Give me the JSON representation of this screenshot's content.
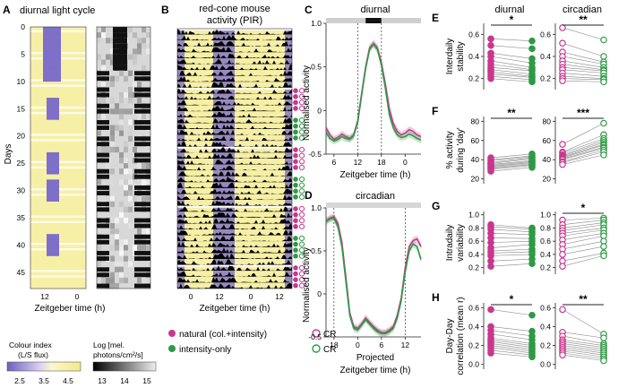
{
  "colors": {
    "natural": "#c8378f",
    "intensity": "#2e9a45",
    "purple": "#7e6fc8",
    "yellow": "#f6efa6",
    "night": "#111111",
    "grey": "#cfcfcf"
  },
  "panels": {
    "A": {
      "label": "A",
      "title": "diurnal light cycle",
      "ylabel": "Days",
      "yticks": [
        "0",
        "5",
        "10",
        "15",
        "20",
        "25",
        "30",
        "35",
        "40",
        "45"
      ],
      "xlabel": "Zeitgeber time (h)",
      "xticks": [
        "12",
        "0"
      ],
      "colour_title": "Colour index",
      "colour_sub": "(L/S flux)",
      "colour_ticks": [
        "2.5",
        "3.5",
        "4.5"
      ],
      "log_title": "Log [mel.",
      "log_sub": "photons/cm²/s]",
      "log_ticks": [
        "13",
        "14",
        "15"
      ]
    },
    "B": {
      "label": "B",
      "title1": "red-cone mouse",
      "title2": "activity (PIR)",
      "xlabel": "Zeitgeber time (h)",
      "xticks": [
        "0",
        "12",
        "0",
        "12"
      ]
    },
    "C": {
      "label": "C",
      "title": "diurnal",
      "ylabel": "Normalised activity",
      "yticks": [
        "1.0",
        "0.5",
        "0",
        "-0.5"
      ],
      "xticks": [
        "6",
        "12",
        "18",
        "0"
      ],
      "xlabel": "Zeitgeber time (h)"
    },
    "D": {
      "label": "D",
      "title": "circadian",
      "ylabel": "Normalised activity",
      "yticks": [
        "1.0",
        "0.5",
        "0",
        "-0.5"
      ],
      "xticks": [
        "18",
        "0",
        "6",
        "12"
      ],
      "xlabel1": "Projected",
      "xlabel2": "Zeitgeber time (h)"
    },
    "E": {
      "label": "E",
      "ylabel1": "Interdaily",
      "ylabel2": "stability",
      "left_ticks": [
        "0.6",
        "0.4",
        "0.2"
      ],
      "right_ticks": [
        "0.6",
        "0.4",
        "0.2"
      ],
      "left_sig": "*",
      "right_sig": "**"
    },
    "F": {
      "label": "F",
      "ylabel1": "% activity",
      "ylabel2": "during 'day'",
      "left_ticks": [
        "80",
        "60",
        "40",
        "20"
      ],
      "right_ticks": [
        "80",
        "60",
        "40",
        "20"
      ],
      "left_sig": "**",
      "right_sig": "***"
    },
    "G": {
      "label": "G",
      "ylabel1": "Intradaily",
      "ylabel2": "variability",
      "left_ticks": [
        "1.0",
        "0.8",
        "0.6",
        "0.4",
        "0.2"
      ],
      "right_ticks": [
        "1.0",
        "0.8",
        "0.6",
        "0.4",
        "0.2"
      ],
      "left_sig": "",
      "right_sig": "*"
    },
    "H": {
      "label": "H",
      "ylabel1": "Day-Day",
      "ylabel2": "correlation (mean r)",
      "left_ticks": [
        "0.6",
        "0.4",
        "0.2",
        "0.0"
      ],
      "right_ticks": [
        "0.6",
        "0.4",
        "0.2",
        "0.0"
      ],
      "left_sig": "*",
      "right_sig": "**"
    }
  },
  "column_titles": {
    "diurnal": "diurnal",
    "circadian": "circadian"
  },
  "legend": {
    "natural": "natural (col.+intensity)",
    "intensity": "intensity-only",
    "cr": "CR"
  },
  "chart_data": [
    {
      "type": "line",
      "title": "diurnal",
      "xlabel": "Zeitgeber time (h)",
      "ylabel": "Normalised activity",
      "xlim": [
        4,
        28
      ],
      "ylim": [
        -0.5,
        1.0
      ],
      "series": [
        {
          "name": "natural (col.+intensity)",
          "x": [
            4,
            5,
            6,
            7,
            8,
            9,
            10,
            11,
            12,
            13,
            14,
            15,
            16,
            17,
            18,
            19,
            20,
            21,
            22,
            23,
            24,
            25,
            26,
            27,
            28
          ],
          "values": [
            -0.2,
            -0.28,
            -0.33,
            -0.31,
            -0.27,
            -0.3,
            -0.32,
            -0.28,
            -0.12,
            0.2,
            0.5,
            0.72,
            0.77,
            0.72,
            0.55,
            0.3,
            0.02,
            -0.15,
            -0.24,
            -0.28,
            -0.26,
            -0.22,
            -0.24,
            -0.28,
            -0.3
          ]
        },
        {
          "name": "intensity-only",
          "x": [
            4,
            5,
            6,
            7,
            8,
            9,
            10,
            11,
            12,
            13,
            14,
            15,
            16,
            17,
            18,
            19,
            20,
            21,
            22,
            23,
            24,
            25,
            26,
            27,
            28
          ],
          "values": [
            -0.25,
            -0.32,
            -0.35,
            -0.33,
            -0.3,
            -0.32,
            -0.33,
            -0.29,
            -0.14,
            0.18,
            0.48,
            0.7,
            0.76,
            0.7,
            0.52,
            0.25,
            -0.05,
            -0.2,
            -0.28,
            -0.31,
            -0.3,
            -0.27,
            -0.29,
            -0.32,
            -0.34
          ]
        }
      ]
    },
    {
      "type": "line",
      "title": "circadian",
      "xlabel": "Projected Zeitgeber time (h)",
      "ylabel": "Normalised activity",
      "xlim": [
        -8,
        16
      ],
      "ylim": [
        -0.5,
        1.0
      ],
      "series": [
        {
          "name": "natural (col.+intensity)",
          "x": [
            -8,
            -7,
            -6,
            -5,
            -4,
            -3,
            -2,
            -1,
            0,
            1,
            2,
            3,
            4,
            5,
            6,
            7,
            8,
            9,
            10,
            11,
            12,
            13,
            14,
            15,
            16
          ],
          "values": [
            0.85,
            0.88,
            0.9,
            0.82,
            0.6,
            0.2,
            -0.22,
            -0.38,
            -0.4,
            -0.35,
            -0.28,
            -0.33,
            -0.38,
            -0.42,
            -0.45,
            -0.45,
            -0.42,
            -0.38,
            -0.25,
            -0.05,
            0.3,
            0.55,
            0.62,
            0.64,
            0.55
          ]
        },
        {
          "name": "intensity-only",
          "x": [
            -8,
            -7,
            -6,
            -5,
            -4,
            -3,
            -2,
            -1,
            0,
            1,
            2,
            3,
            4,
            5,
            6,
            7,
            8,
            9,
            10,
            11,
            12,
            13,
            14,
            15,
            16
          ],
          "values": [
            0.84,
            0.87,
            0.88,
            0.78,
            0.55,
            0.15,
            -0.25,
            -0.4,
            -0.42,
            -0.36,
            -0.3,
            -0.35,
            -0.4,
            -0.44,
            -0.46,
            -0.46,
            -0.44,
            -0.4,
            -0.28,
            -0.08,
            0.25,
            0.5,
            0.58,
            0.55,
            0.4
          ]
        }
      ]
    },
    {
      "type": "scatter",
      "title": "Interdaily stability",
      "ylim": [
        0.1,
        0.7
      ],
      "diurnal": {
        "natural": [
          0.56,
          0.5,
          0.43,
          0.4,
          0.36,
          0.33,
          0.3,
          0.28,
          0.26,
          0.24,
          0.22,
          0.2
        ],
        "intensity": [
          0.54,
          0.47,
          0.38,
          0.34,
          0.3,
          0.28,
          0.27,
          0.24,
          0.22,
          0.21,
          0.19,
          0.17
        ]
      },
      "circadian": {
        "natural": [
          0.66,
          0.52,
          0.44,
          0.4,
          0.36,
          0.33,
          0.3,
          0.28,
          0.25,
          0.22,
          0.2,
          0.18
        ],
        "intensity": [
          0.55,
          0.4,
          0.35,
          0.33,
          0.3,
          0.28,
          0.27,
          0.25,
          0.22,
          0.2,
          0.19,
          0.17
        ]
      }
    },
    {
      "type": "scatter",
      "title": "% activity during 'day'",
      "ylim": [
        15,
        85
      ],
      "diurnal": {
        "natural": [
          42,
          40,
          39,
          37,
          36,
          35,
          34,
          33,
          32,
          31,
          30,
          28
        ],
        "intensity": [
          46,
          44,
          43,
          42,
          41,
          39,
          38,
          37,
          36,
          35,
          34,
          32
        ]
      },
      "circadian": {
        "natural": [
          56,
          48,
          47,
          45,
          44,
          43,
          42,
          41,
          40,
          38,
          37,
          35
        ],
        "intensity": [
          78,
          66,
          62,
          60,
          58,
          56,
          55,
          53,
          52,
          50,
          48,
          45
        ]
      }
    },
    {
      "type": "scatter",
      "title": "Intradaily variability",
      "ylim": [
        0.1,
        1.05
      ],
      "diurnal": {
        "natural": [
          0.85,
          0.82,
          0.78,
          0.72,
          0.65,
          0.58,
          0.5,
          0.45,
          0.42,
          0.38,
          0.3,
          0.22
        ],
        "intensity": [
          0.8,
          0.78,
          0.74,
          0.7,
          0.64,
          0.6,
          0.55,
          0.48,
          0.44,
          0.4,
          0.33,
          0.26
        ]
      },
      "circadian": {
        "natural": [
          0.92,
          0.85,
          0.8,
          0.76,
          0.72,
          0.68,
          0.62,
          0.55,
          0.48,
          0.4,
          0.3,
          0.22
        ],
        "intensity": [
          0.95,
          0.92,
          0.88,
          0.85,
          0.8,
          0.77,
          0.72,
          0.68,
          0.6,
          0.52,
          0.42,
          0.38
        ]
      }
    },
    {
      "type": "scatter",
      "title": "Day-Day correlation (mean r)",
      "ylim": [
        -0.05,
        0.65
      ],
      "diurnal": {
        "natural": [
          0.58,
          0.4,
          0.36,
          0.32,
          0.28,
          0.26,
          0.24,
          0.22,
          0.2,
          0.18,
          0.15,
          0.12
        ],
        "intensity": [
          0.52,
          0.35,
          0.3,
          0.26,
          0.22,
          0.2,
          0.18,
          0.16,
          0.14,
          0.12,
          0.1,
          0.08
        ]
      },
      "circadian": {
        "natural": [
          0.58,
          0.34,
          0.3,
          0.26,
          0.24,
          0.22,
          0.2,
          0.18,
          0.16,
          0.14,
          0.12,
          0.1
        ],
        "intensity": [
          0.32,
          0.28,
          0.22,
          0.2,
          0.18,
          0.16,
          0.14,
          0.12,
          0.1,
          0.08,
          0.06,
          0.04
        ]
      }
    }
  ]
}
